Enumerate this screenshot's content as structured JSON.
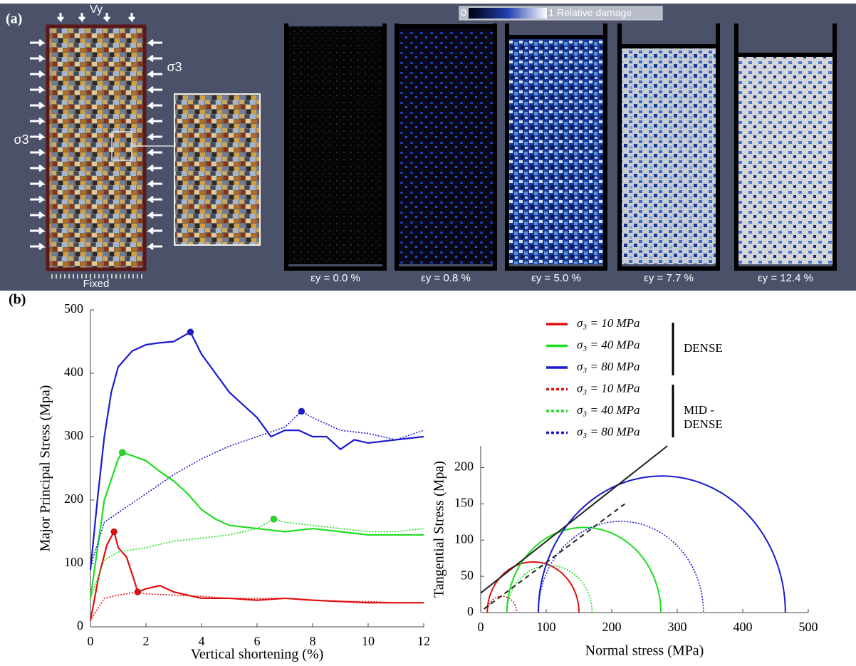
{
  "panel_a": {
    "label": "(a)",
    "load_label": "Vy",
    "sigma_left": "σ3",
    "sigma_right": "σ3",
    "base_label": "Fixed",
    "colorbar": {
      "min_label": "0",
      "max_label": "1",
      "title": "Relative damage"
    },
    "strain_labels": [
      "εy = 0.0 %",
      "εy = 0.8 %",
      "εy = 5.0 %",
      "εy = 7.7 %",
      "εy = 12.4 %"
    ]
  },
  "panel_b": {
    "label": "(b)",
    "legend_groups": [
      "DENSE",
      "MID - DENSE"
    ]
  },
  "chart_data": [
    {
      "type": "line",
      "xlabel": "Vertical shortening (%)",
      "ylabel": "Major Principal Stress (Mpa)",
      "xlim": [
        0,
        12
      ],
      "ylim": [
        0,
        500
      ],
      "xticks": [
        0,
        2,
        4,
        6,
        8,
        10,
        12
      ],
      "yticks": [
        0,
        100,
        200,
        300,
        400,
        500
      ],
      "series": [
        {
          "name": "σ₃ = 10 MPa",
          "color": "#e01010",
          "dash": false,
          "x": [
            0,
            0.3,
            0.6,
            0.85,
            1,
            1.3,
            1.6,
            1.7,
            2,
            2.5,
            3,
            4,
            5,
            6,
            7,
            8,
            9,
            10,
            11,
            12
          ],
          "values": [
            10,
            80,
            130,
            150,
            125,
            110,
            70,
            55,
            60,
            65,
            55,
            45,
            45,
            42,
            45,
            42,
            40,
            38,
            38,
            38
          ]
        },
        {
          "name": "σ₃ = 40 MPa",
          "color": "#20dd20",
          "dash": false,
          "x": [
            0,
            0.5,
            1,
            1.15,
            1.5,
            2,
            2.5,
            3,
            3.5,
            4,
            4.5,
            5,
            6,
            7,
            8,
            9,
            10,
            11,
            12
          ],
          "values": [
            45,
            200,
            265,
            275,
            270,
            262,
            245,
            230,
            210,
            185,
            170,
            160,
            155,
            150,
            155,
            150,
            145,
            145,
            145
          ]
        },
        {
          "name": "σ₃ = 80 MPa",
          "color": "#1a1ad0",
          "dash": false,
          "x": [
            0,
            0.25,
            0.5,
            0.75,
            1,
            1.5,
            2,
            2.5,
            3,
            3.6,
            4,
            4.5,
            5,
            5.5,
            6,
            6.5,
            7,
            7.5,
            8,
            8.5,
            9,
            9.5,
            10,
            11,
            12
          ],
          "values": [
            90,
            200,
            300,
            370,
            410,
            435,
            445,
            448,
            450,
            465,
            430,
            400,
            370,
            350,
            330,
            300,
            310,
            310,
            300,
            300,
            280,
            295,
            290,
            295,
            300
          ]
        },
        {
          "name": "σ₃ = 10 MPa",
          "color": "#e01010",
          "dash": true,
          "x": [
            0,
            0.5,
            1,
            1.7,
            2,
            3,
            4,
            5,
            6,
            7,
            8,
            9,
            10,
            11,
            12
          ],
          "values": [
            10,
            45,
            50,
            55,
            52,
            50,
            48,
            45,
            45,
            45,
            42,
            40,
            40,
            38,
            38
          ]
        },
        {
          "name": "σ₃ = 40 MPa",
          "color": "#20dd20",
          "dash": true,
          "x": [
            0,
            0.5,
            1,
            2,
            3,
            4,
            5,
            6,
            6.6,
            7,
            8,
            9,
            10,
            11,
            12
          ],
          "values": [
            45,
            105,
            118,
            125,
            135,
            140,
            145,
            155,
            170,
            165,
            160,
            155,
            150,
            150,
            155
          ]
        },
        {
          "name": "σ₃ = 80 MPa",
          "color": "#1a1ad0",
          "dash": true,
          "x": [
            0,
            0.5,
            1,
            2,
            3,
            4,
            5,
            6,
            7,
            7.6,
            8,
            9,
            10,
            11,
            12
          ],
          "values": [
            95,
            165,
            180,
            210,
            240,
            265,
            285,
            300,
            315,
            340,
            330,
            310,
            305,
            295,
            310
          ]
        }
      ]
    },
    {
      "type": "mohr",
      "xlabel": "Normal stress (MPa)",
      "ylabel": "Tangential Stress (Mpa)",
      "xlim": [
        0,
        500
      ],
      "ylim": [
        0,
        230
      ],
      "xticks": [
        0,
        100,
        200,
        300,
        400,
        500
      ],
      "yticks": [
        0,
        50,
        100,
        150,
        200
      ],
      "series": [
        {
          "color": "#e01010",
          "dash": false,
          "range": [
            10,
            150
          ]
        },
        {
          "color": "#20dd20",
          "dash": false,
          "range": [
            40,
            275
          ]
        },
        {
          "color": "#1a1ad0",
          "dash": false,
          "range": [
            88,
            465
          ]
        },
        {
          "color": "#e01010",
          "dash": true,
          "range": [
            10,
            55
          ]
        },
        {
          "color": "#20dd20",
          "dash": true,
          "range": [
            40,
            170
          ]
        },
        {
          "color": "#1a1ad0",
          "dash": true,
          "range": [
            88,
            340
          ]
        }
      ],
      "envelopes": [
        {
          "color": "#222222",
          "dash": false,
          "x": [
            0,
            285
          ],
          "y": [
            27,
            230
          ]
        },
        {
          "color": "#222222",
          "dash": true,
          "x": [
            5,
            220
          ],
          "y": [
            5,
            150
          ]
        }
      ]
    }
  ]
}
